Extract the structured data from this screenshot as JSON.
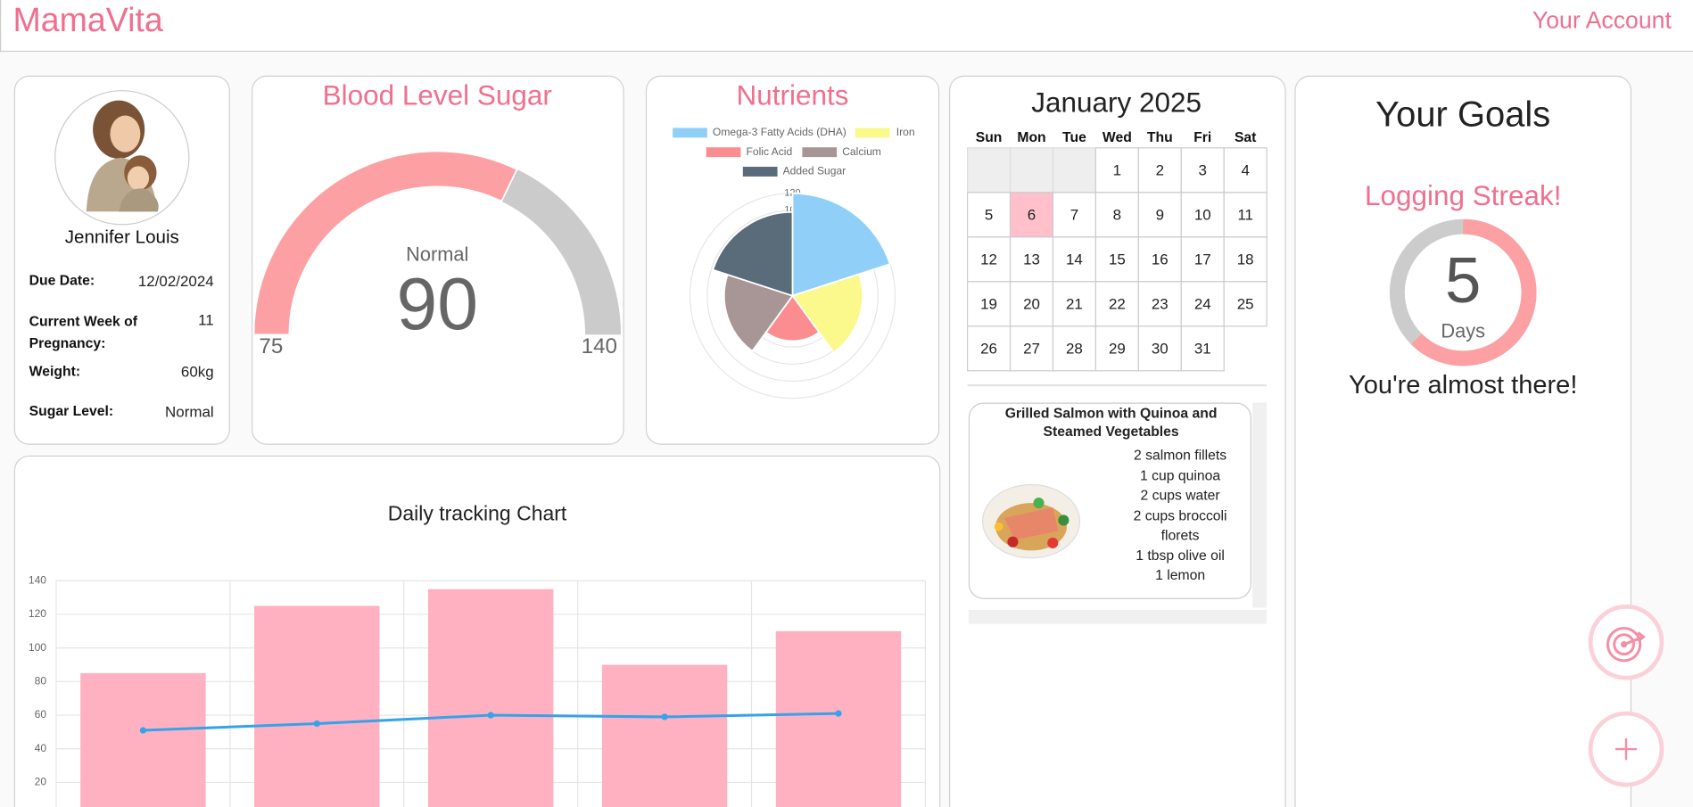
{
  "header": {
    "brand": "MamaVita",
    "account": "Your Account"
  },
  "profile": {
    "name": "Jennifer Louis",
    "fields": [
      {
        "label": "Due Date:",
        "value": "12/02/2024"
      },
      {
        "label": "Current Week of Pregnancy:",
        "value": 11
      },
      {
        "label": "Weight:",
        "value": "60kg"
      },
      {
        "label": "Sugar Level:",
        "value": "Normal"
      }
    ]
  },
  "chart_data": [
    {
      "type": "gauge",
      "title": "Blood Level Sugar",
      "status": "Normal",
      "value": 90,
      "ylim": [
        75,
        140
      ],
      "colors": [
        "#fca0a3",
        "#cbcbcb"
      ]
    },
    {
      "type": "polarArea",
      "title": "Nutrients",
      "categories": [
        "Omega-3 Fatty Acids (DHA)",
        "Iron",
        "Folic Acid",
        "Calcium",
        "Added Sugar"
      ],
      "values": [
        120,
        82,
        53,
        80,
        98
      ],
      "colors": [
        "#90d0f8",
        "#fbf88c",
        "#fb8d90",
        "#a89595",
        "#5a6b7a"
      ],
      "rlim": [
        0,
        120
      ],
      "rticks": [
        0,
        20,
        40,
        60,
        80,
        100,
        120
      ]
    },
    {
      "type": "bar",
      "title": "Daily tracking Chart",
      "categories": [
        null,
        null,
        null,
        null,
        null
      ],
      "series": [
        {
          "type": "bar",
          "color": "#ffb1c1",
          "values": [
            85,
            125,
            135,
            90,
            110
          ]
        },
        {
          "type": "line",
          "color": "#36a2eb",
          "values": [
            51,
            55,
            60,
            59,
            61
          ]
        }
      ],
      "ylim": [
        0,
        140
      ],
      "yticks": [
        20,
        40,
        60,
        80,
        100,
        120,
        140
      ],
      "grid": true
    }
  ],
  "calendar": {
    "title": "January 2025",
    "weekdays": [
      "Sun",
      "Mon",
      "Tue",
      "Wed",
      "Thu",
      "Fri",
      "Sat"
    ],
    "days": [
      1,
      2,
      3,
      4,
      5,
      6,
      7,
      8,
      9,
      10,
      11,
      12,
      13,
      14,
      15,
      16,
      17,
      18,
      19,
      20,
      21,
      22,
      23,
      24,
      25,
      26,
      27,
      28,
      29,
      30,
      31
    ],
    "highlight": 6
  },
  "recipe": {
    "title": "Grilled Salmon with Quinoa and Steamed Vegetables",
    "ingredients": [
      "2 salmon fillets",
      "1 cup quinoa",
      "2 cups water",
      "2 cups broccoli florets",
      "1 tbsp olive oil",
      "1 lemon"
    ]
  },
  "goals": {
    "title": "Your Goals",
    "streak_title": "Logging Streak!",
    "streak": 5,
    "unit": "Days",
    "ring_max": 8,
    "message": "You're almost there!"
  }
}
